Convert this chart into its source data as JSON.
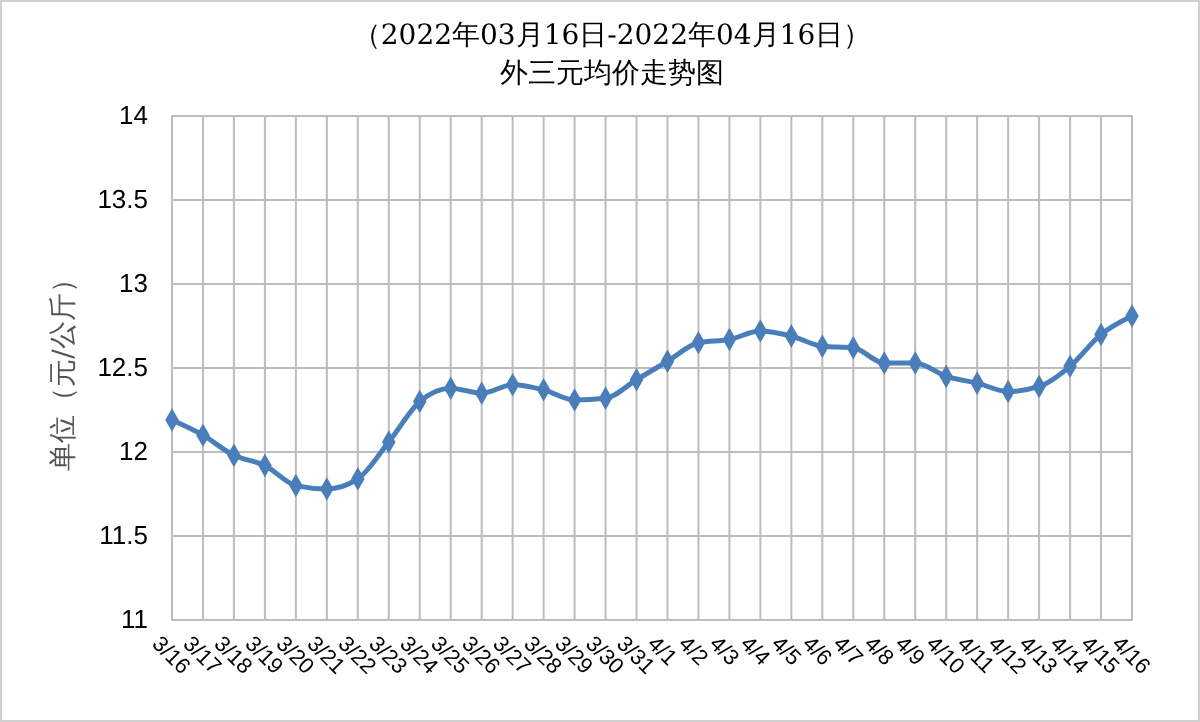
{
  "chart_data": {
    "type": "line",
    "title": "（2022年03月16日-2022年04月16日）",
    "subtitle": "外三元均价走势图",
    "ylabel": "单位（元/公斤）",
    "categories": [
      "3/16",
      "3/17",
      "3/18",
      "3/19",
      "3/20",
      "3/21",
      "3/22",
      "3/23",
      "3/24",
      "3/25",
      "3/26",
      "3/27",
      "3/28",
      "3/29",
      "3/30",
      "3/31",
      "4/1",
      "4/2",
      "4/3",
      "4/4",
      "4/5",
      "4/6",
      "4/7",
      "4/8",
      "4/9",
      "4/10",
      "4/11",
      "4/12",
      "4/13",
      "4/14",
      "4/15",
      "4/16"
    ],
    "series": [
      {
        "color": "#4a7ebb",
        "values": [
          12.19,
          12.1,
          11.98,
          11.92,
          11.8,
          11.78,
          11.84,
          12.06,
          12.3,
          12.38,
          12.35,
          12.4,
          12.37,
          12.31,
          12.32,
          12.43,
          12.54,
          12.65,
          12.67,
          12.72,
          12.69,
          12.63,
          12.62,
          12.53,
          12.53,
          12.45,
          12.41,
          12.36,
          12.39,
          12.51,
          12.7,
          12.81
        ]
      }
    ],
    "ylim": [
      11,
      14
    ],
    "yticks": [
      11,
      11.5,
      12,
      12.5,
      13,
      13.5,
      14
    ],
    "grid": true,
    "marker": "diamond",
    "line_style": "solid"
  }
}
